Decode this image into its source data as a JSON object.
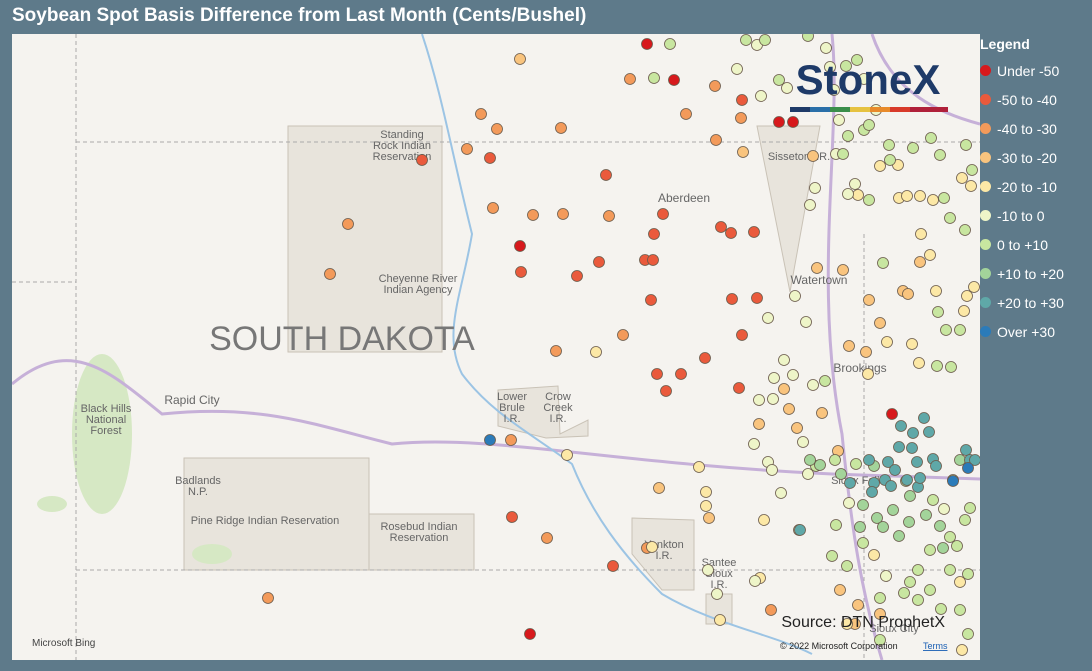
{
  "title": "Soybean Spot Basis Difference from Last Month (Cents/Bushel)",
  "legend": {
    "title": "Legend",
    "items": [
      {
        "label": "Under -50",
        "color": "#d7191c"
      },
      {
        "label": "-50 to -40",
        "color": "#ea5a3c"
      },
      {
        "label": "-40 to -30",
        "color": "#f39a5a"
      },
      {
        "label": "-30 to -20",
        "color": "#f9c47e"
      },
      {
        "label": "-20 to -10",
        "color": "#fce8a6"
      },
      {
        "label": "-10 to 0",
        "color": "#eef5c8"
      },
      {
        "label": "0 to +10",
        "color": "#c8e6a0"
      },
      {
        "label": "+10 to +20",
        "color": "#a3d49a"
      },
      {
        "label": "+20 to +30",
        "color": "#5fa8a8"
      },
      {
        "label": "Over +30",
        "color": "#2b7bb9"
      }
    ]
  },
  "places": [
    "Standing Rock Indian Reservation",
    "Cheyenne River Indian Agency",
    "SOUTH DAKOTA",
    "Aberdeen",
    "Sisseton I.R.",
    "Watertown",
    "Brookings",
    "Rapid City",
    "Black Hills National Forest",
    "Badlands N.P.",
    "Pine Ridge Indian Reservation",
    "Rosebud Indian Reservation",
    "Lower Brule I.R.",
    "Crow Creek I.R.",
    "Yankton I.R.",
    "Santee Sioux I.R.",
    "Sioux Falls",
    "Sioux City"
  ],
  "logo": "StoneX",
  "source": "Source: DTN ProphetX",
  "copyright": "© 2022 Microsoft Corporation",
  "terms": "Terms",
  "attribution": "Microsoft Bing"
}
